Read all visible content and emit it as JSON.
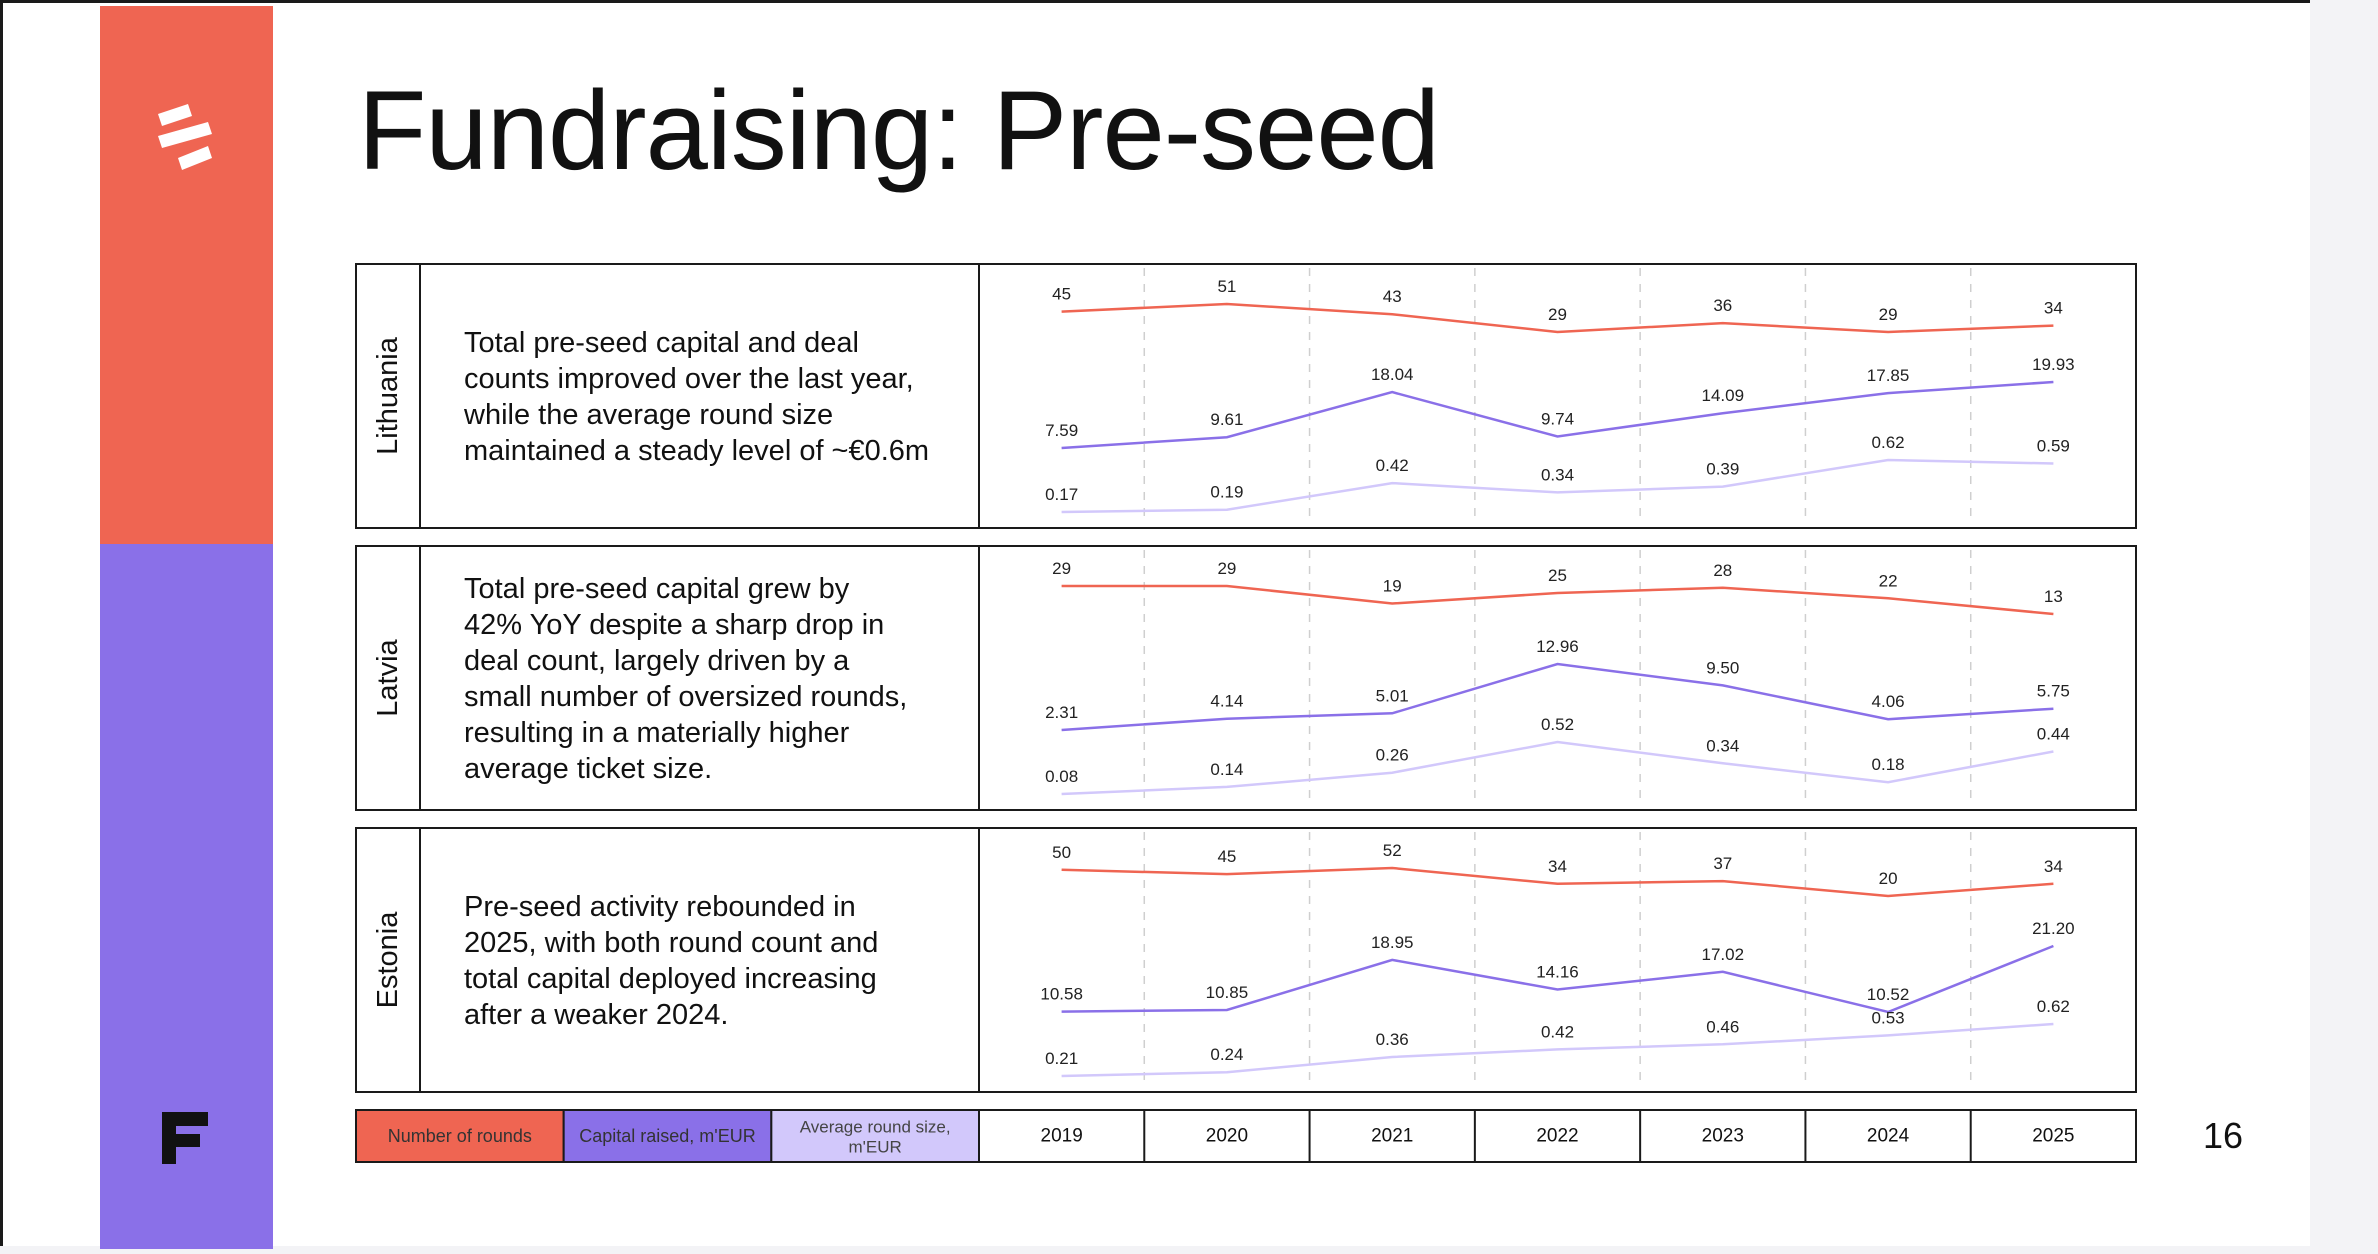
{
  "title": "Fundraising: Pre-seed",
  "page_number": "16",
  "colors": {
    "rounds": "#ef6552",
    "capital": "#8a70e8",
    "avg": "#d2c8fb",
    "sidebar_top": "#ef6552",
    "sidebar_bottom": "#8a70e8"
  },
  "icons": {
    "logo_top": "stripes-logo-icon",
    "logo_bottom": "f-logo-icon"
  },
  "legend": [
    {
      "label": "Number of rounds",
      "color": "#ef6552"
    },
    {
      "label": "Capital raised, m'EUR",
      "color": "#8a70e8"
    },
    {
      "label_line1": "Average round size,",
      "label_line2": "m'EUR",
      "color": "#d2c8fb"
    }
  ],
  "chart_data": {
    "type": "line",
    "x": [
      "2019",
      "2020",
      "2021",
      "2022",
      "2023",
      "2024",
      "2025"
    ],
    "panels": [
      {
        "country": "Lithuania",
        "description": [
          "Total pre-seed capital and deal",
          "counts improved over the last year,",
          "while the average round size",
          "maintained a steady level of ~€0.6m"
        ],
        "series": [
          {
            "name": "Number of rounds",
            "values": [
              45,
              51,
              43,
              29,
              36,
              29,
              34
            ],
            "labels": [
              "45",
              "51",
              "43",
              "29",
              "36",
              "29",
              "34"
            ]
          },
          {
            "name": "Capital raised, m'EUR",
            "values": [
              7.59,
              9.61,
              18.04,
              9.74,
              14.09,
              17.85,
              19.93
            ],
            "labels": [
              "7.59",
              "9.61",
              "18.04",
              "9.74",
              "14.09",
              "17.85",
              "19.93"
            ]
          },
          {
            "name": "Average round size, m'EUR",
            "values": [
              0.17,
              0.19,
              0.42,
              0.34,
              0.39,
              0.62,
              0.59
            ],
            "labels": [
              "0.17",
              "0.19",
              "0.42",
              "0.34",
              "0.39",
              "0.62",
              "0.59"
            ]
          }
        ]
      },
      {
        "country": "Latvia",
        "description": [
          "Total pre-seed capital grew by",
          "42% YoY despite a sharp drop in",
          "deal count, largely driven by a",
          "small number of oversized rounds,",
          "resulting in a materially higher",
          "average ticket size."
        ],
        "series": [
          {
            "name": "Number of rounds",
            "values": [
              29,
              29,
              19,
              25,
              28,
              22,
              13
            ],
            "labels": [
              "29",
              "29",
              "19",
              "25",
              "28",
              "22",
              "13"
            ]
          },
          {
            "name": "Capital raised, m'EUR",
            "values": [
              2.31,
              4.14,
              5.01,
              12.96,
              9.5,
              4.06,
              5.75
            ],
            "labels": [
              "2.31",
              "4.14",
              "5.01",
              "12.96",
              "9.50",
              "4.06",
              "5.75"
            ]
          },
          {
            "name": "Average round size, m'EUR",
            "values": [
              0.08,
              0.14,
              0.26,
              0.52,
              0.34,
              0.18,
              0.44
            ],
            "labels": [
              "0.08",
              "0.14",
              "0.26",
              "0.52",
              "0.34",
              "0.18",
              "0.44"
            ]
          }
        ]
      },
      {
        "country": "Estonia",
        "description": [
          "Pre-seed activity rebounded in",
          "2025, with both round count and",
          "total capital deployed increasing",
          "after a weaker 2024."
        ],
        "series": [
          {
            "name": "Number of rounds",
            "values": [
              50,
              45,
              52,
              34,
              37,
              20,
              34
            ],
            "labels": [
              "50",
              "45",
              "52",
              "34",
              "37",
              "20",
              "34"
            ]
          },
          {
            "name": "Capital raised, m'EUR",
            "values": [
              10.58,
              10.85,
              18.95,
              14.16,
              17.02,
              10.52,
              21.2
            ],
            "labels": [
              "10.58",
              "10.85",
              "18.95",
              "14.16",
              "17.02",
              "10.52",
              "21.20"
            ]
          },
          {
            "name": "Average round size, m'EUR",
            "values": [
              0.21,
              0.24,
              0.36,
              0.42,
              0.46,
              0.53,
              0.62
            ],
            "labels": [
              "0.21",
              "0.24",
              "0.36",
              "0.42",
              "0.46",
              "0.53",
              "0.62"
            ]
          }
        ]
      }
    ]
  }
}
